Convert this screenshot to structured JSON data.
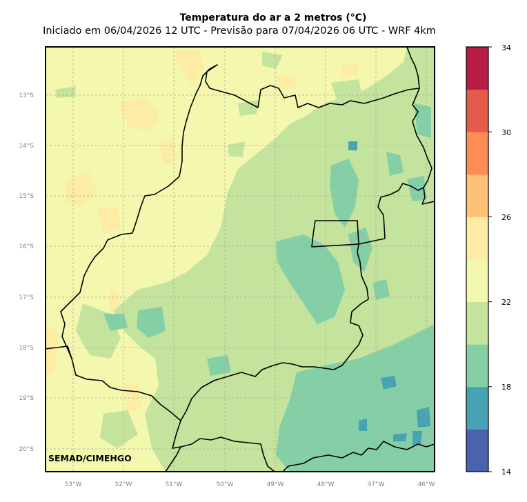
{
  "title": "Temperatura do ar a 2 metros (°C)",
  "subtitle": "Iniciado em 06/04/2026 12 UTC - Previsão para 07/04/2026 06 UTC - WRF 4km",
  "credit": "SEMAD/CIMEHGO",
  "lat_labels": [
    "13°S",
    "14°S",
    "15°S",
    "16°S",
    "17°S",
    "18°S",
    "19°S",
    "20°S"
  ],
  "lon_labels": [
    "53°W",
    "52°W",
    "51°W",
    "50°W",
    "49°W",
    "48°W",
    "47°W",
    "46°W"
  ],
  "colorbar": {
    "ticks": [
      "14",
      "18",
      "22",
      "26",
      "30",
      "34"
    ],
    "levels": [
      14,
      16,
      18,
      20,
      22,
      24,
      26,
      28,
      30,
      32,
      34
    ],
    "colors": [
      "#4a63ad",
      "#47a3b3",
      "#85cfa6",
      "#c4e39d",
      "#f4f7ae",
      "#fdeca3",
      "#fdc177",
      "#fb8d55",
      "#e55c4d",
      "#b81b46"
    ]
  },
  "colors": {
    "background_field": "#f4f7ae",
    "grid": "#a8a8a8"
  }
}
